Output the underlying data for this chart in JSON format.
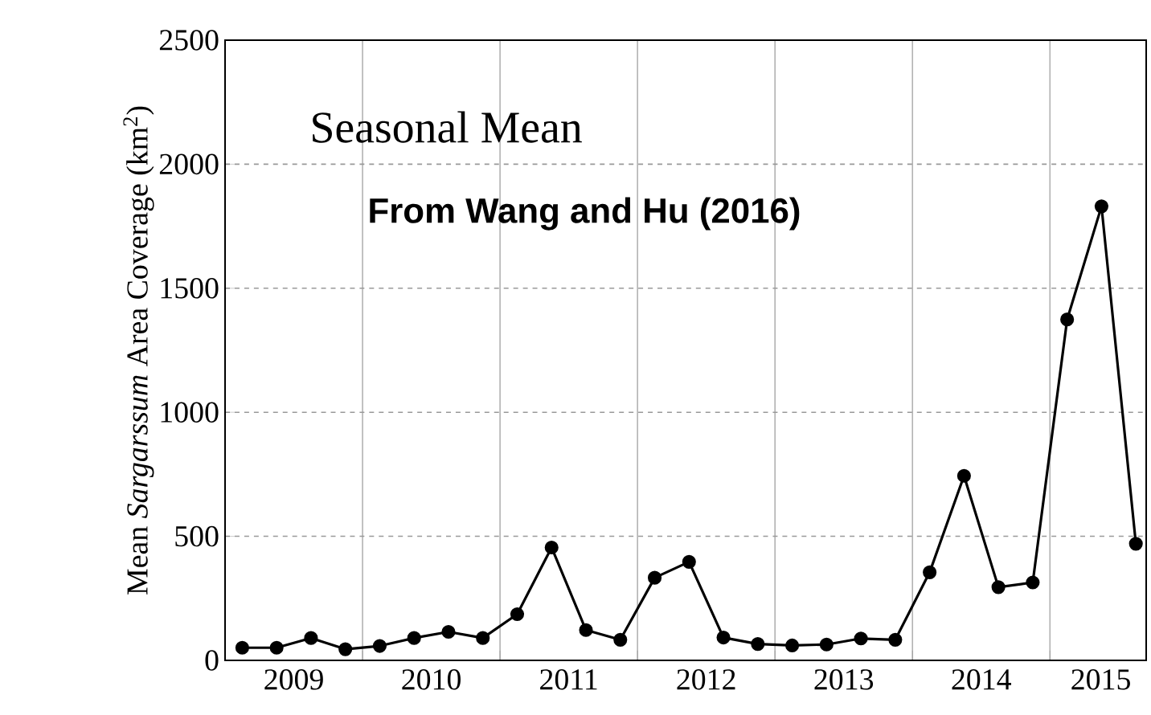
{
  "chart_data": {
    "type": "line",
    "title": "Seasonal Mean",
    "annotations": [
      "From Wang and Hu (2016)"
    ],
    "ylabel": "Mean *Sargarssum* Area Coverage (km$^{2}$)",
    "x": [
      2009.125,
      2009.375,
      2009.625,
      2009.875,
      2010.125,
      2010.375,
      2010.625,
      2010.875,
      2011.125,
      2011.375,
      2011.625,
      2011.875,
      2012.125,
      2012.375,
      2012.625,
      2012.875,
      2013.125,
      2013.375,
      2013.625,
      2013.875,
      2014.125,
      2014.375,
      2014.625,
      2014.875,
      2015.125,
      2015.375,
      2015.625
    ],
    "series": [
      {
        "color": "#000000",
        "values": [
          51,
          51,
          90,
          45,
          58,
          90,
          115,
          90,
          186,
          455,
          122,
          83,
          333,
          397,
          92,
          66,
          60,
          64,
          88,
          83,
          355,
          744,
          295,
          314,
          1374,
          1830,
          470
        ]
      }
    ],
    "xlim": [
      2009,
      2015.7
    ],
    "xticks": [
      {
        "value": 2009,
        "label": null
      },
      {
        "value": 2009.5,
        "label": "2009"
      },
      {
        "value": 2010,
        "label": null
      },
      {
        "value": 2010.5,
        "label": "2010"
      },
      {
        "value": 2011,
        "label": null
      },
      {
        "value": 2011.5,
        "label": "2011"
      },
      {
        "value": 2012,
        "label": null
      },
      {
        "value": 2012.5,
        "label": "2012"
      },
      {
        "value": 2013,
        "label": null
      },
      {
        "value": 2013.5,
        "label": "2013"
      },
      {
        "value": 2014,
        "label": null
      },
      {
        "value": 2014.5,
        "label": "2014"
      },
      {
        "value": 2015,
        "label": null
      },
      {
        "value": 2015.37,
        "label": "2015"
      }
    ],
    "ylim": [
      0,
      2500
    ],
    "yticks": [
      0,
      500,
      1000,
      1500,
      2000,
      2500
    ],
    "grid": true,
    "marker": "circle",
    "line_style": "solid"
  }
}
